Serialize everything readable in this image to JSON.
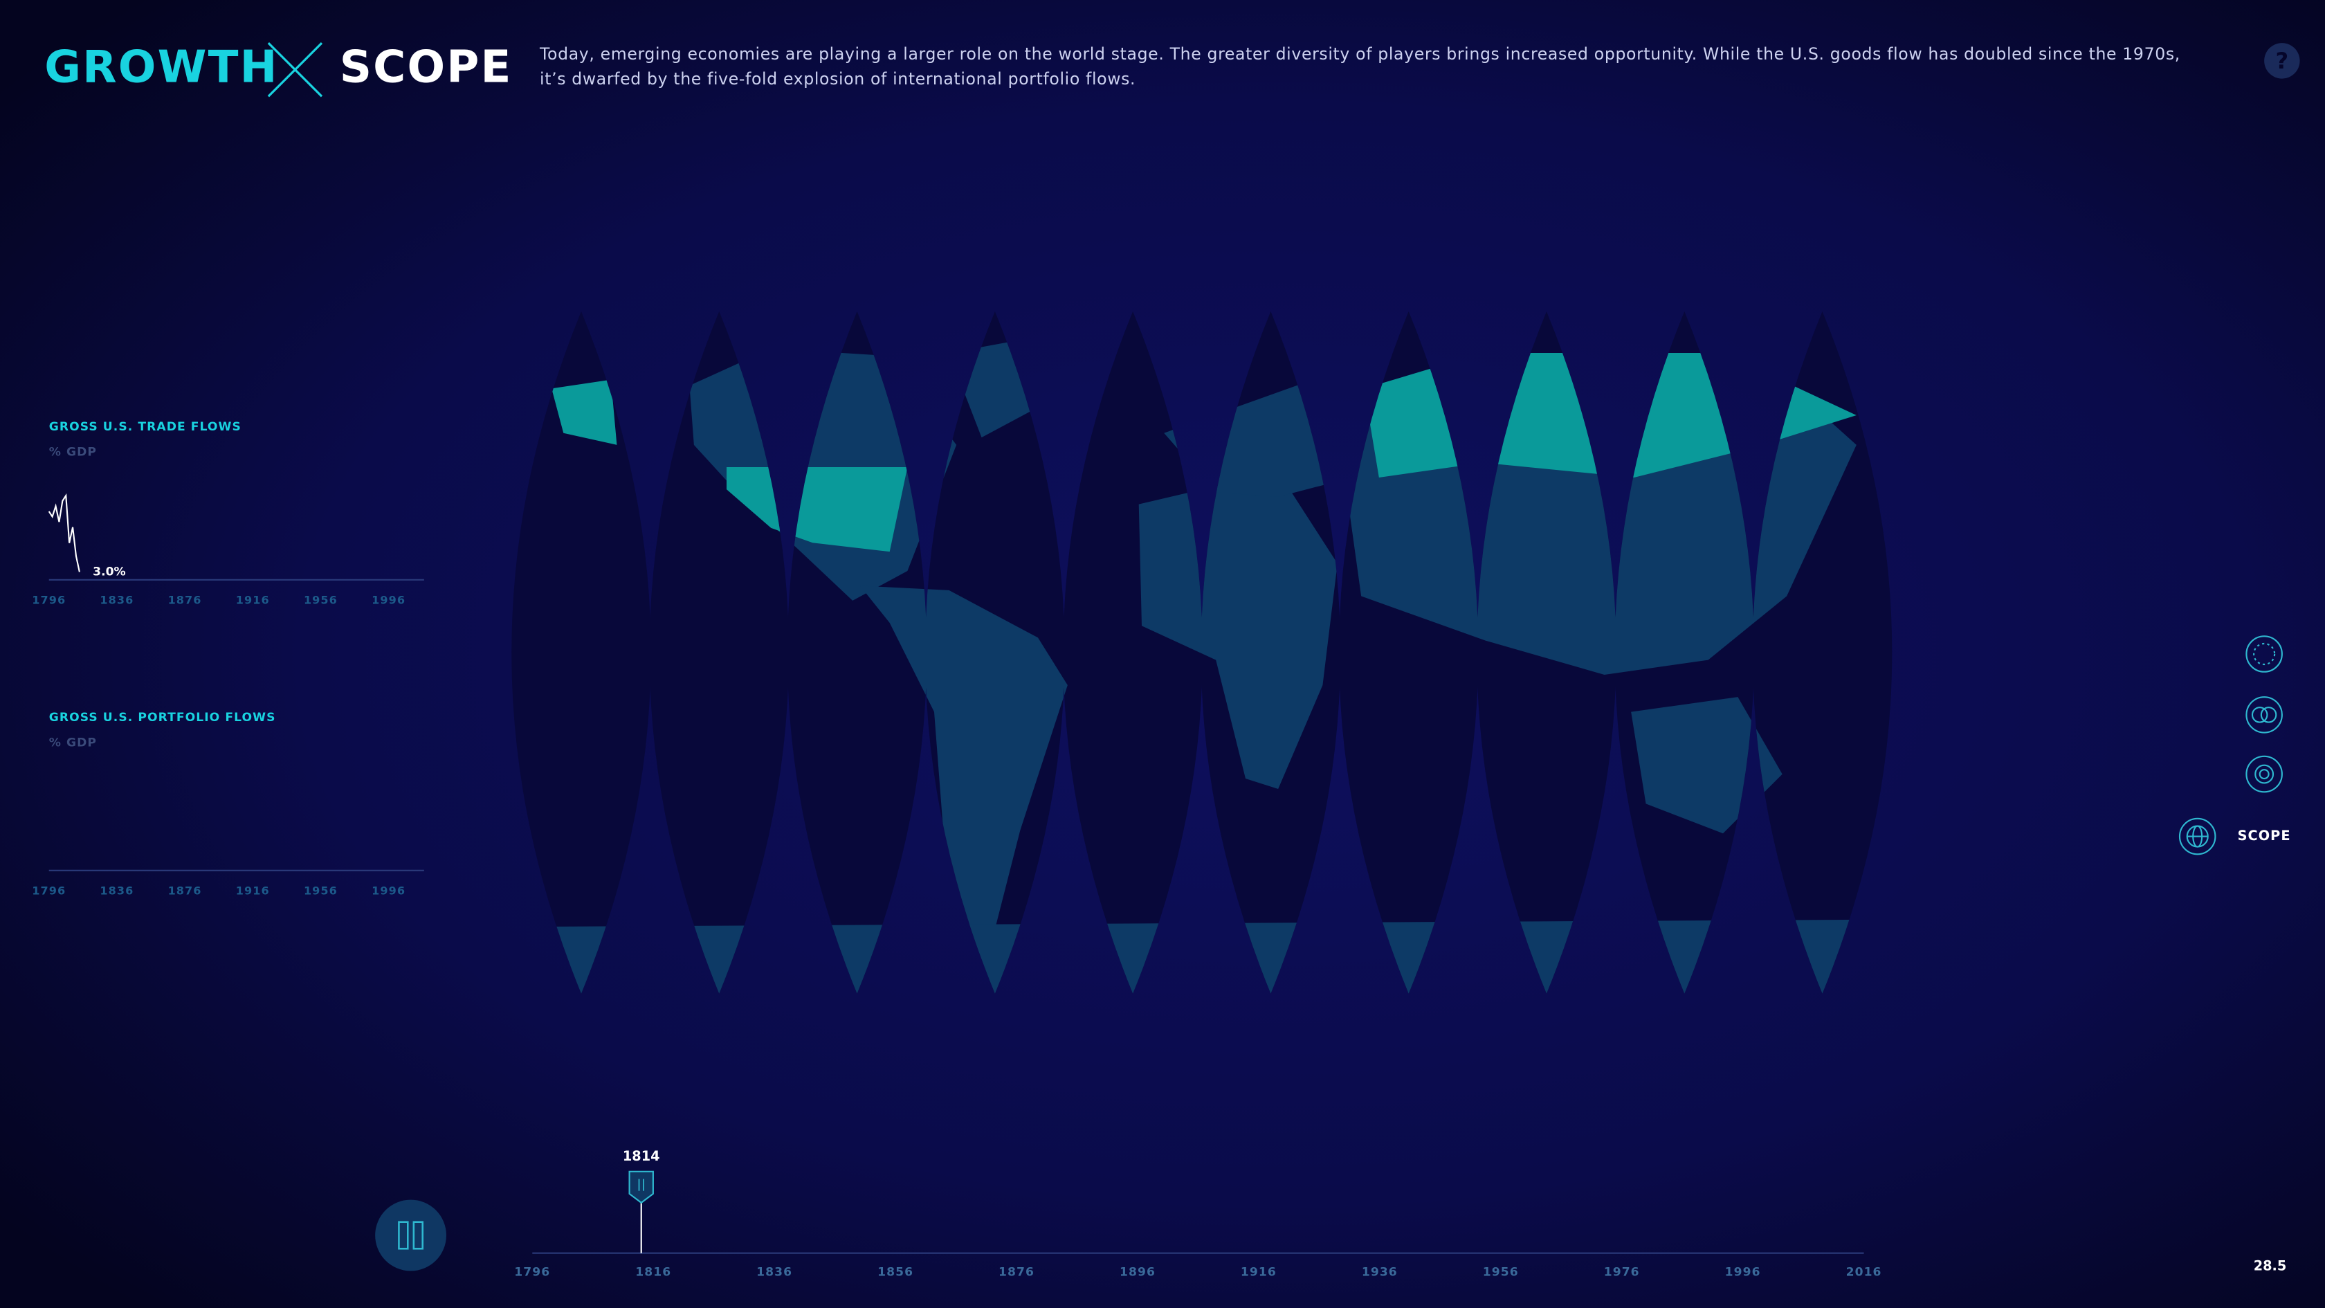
{
  "header": {
    "title_left": "GROWTH",
    "title_right": "SCOPE",
    "description": [
      "Today, emerging economies are playing a larger role on the world stage. The greater diversity of players brings increased opportunity. While the U.S. goods flow has doubled since the 1970s,",
      "it’s dwarfed by the five-fold explosion of international portfolio flows."
    ],
    "help": "?"
  },
  "chart_data": [
    {
      "type": "line",
      "title": "GROSS U.S. TRADE FLOWS",
      "subtitle": "% GDP",
      "x": [
        1796,
        1798,
        1800,
        1802,
        1804,
        1806,
        1808,
        1810,
        1812,
        1814
      ],
      "series": [
        {
          "color": "#ffffff",
          "values": [
            26,
            24,
            28,
            22,
            30,
            32,
            14,
            20,
            9,
            3
          ],
          "value_labels": [
            null,
            null,
            null,
            null,
            null,
            null,
            null,
            null,
            null,
            "3.0%"
          ]
        }
      ],
      "xlim": [
        1796,
        2016
      ],
      "xticks": [
        1796,
        1836,
        1876,
        1916,
        1956,
        1996
      ],
      "ylim": [
        0,
        40
      ]
    },
    {
      "type": "line",
      "title": "GROSS U.S. PORTFOLIO FLOWS",
      "subtitle": "% GDP",
      "x": [],
      "series": [],
      "xlim": [
        1796,
        2016
      ],
      "xticks": [
        1796,
        1836,
        1876,
        1916,
        1956,
        1996
      ],
      "ylim": [
        0,
        40
      ]
    }
  ],
  "timeline": {
    "xlim": [
      1796,
      2016
    ],
    "xticks": [
      1796,
      1816,
      1836,
      1856,
      1876,
      1896,
      1916,
      1936,
      1956,
      1976,
      1996,
      2016
    ],
    "current": 1814
  },
  "nav": {
    "label": "SCOPE"
  },
  "counter": "28.5"
}
